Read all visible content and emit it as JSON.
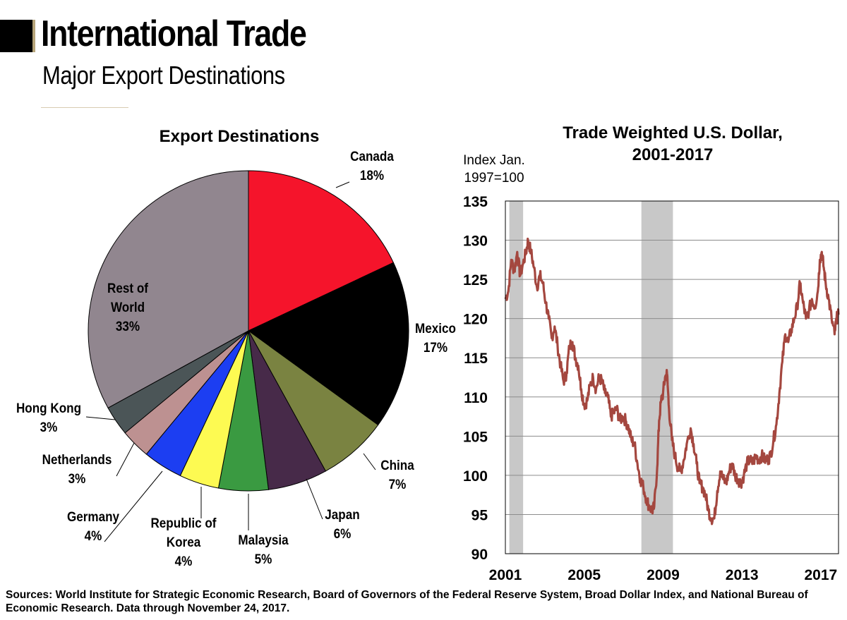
{
  "header": {
    "title": "International Trade",
    "subtitle": "Major Export Destinations"
  },
  "footer": {
    "sources": "Sources: World Institute for Strategic Economic Research, Board of Governors of the Federal Reserve System, Broad Dollar Index, and National Bureau of Economic Research. Data through November 24, 2017."
  },
  "colors": {
    "title_bar": "#000000",
    "accent": "#b7a57a",
    "line": "#a4473f",
    "recession": "#c8c8c8"
  },
  "chart_data": [
    {
      "type": "pie",
      "title": "Export Destinations",
      "start": "12 o'clock",
      "direction": "clockwise",
      "slices": [
        {
          "name": "Canada",
          "pct_label": "18%",
          "value": 18,
          "color": "#f5142b"
        },
        {
          "name": "Mexico",
          "pct_label": "17%",
          "value": 17,
          "color": "#000000"
        },
        {
          "name": "China",
          "pct_label": "7%",
          "value": 7,
          "color": "#7a8341"
        },
        {
          "name": "Japan",
          "pct_label": "6%",
          "value": 6,
          "color": "#472a49"
        },
        {
          "name": "Malaysia",
          "pct_label": "5%",
          "value": 5,
          "color": "#3a9a41"
        },
        {
          "name": "Republic of Korea",
          "pct_label": "4%",
          "value": 4,
          "color": "#fdfa52"
        },
        {
          "name": "Germany",
          "pct_label": "4%",
          "value": 4,
          "color": "#1c3ef2"
        },
        {
          "name": "Netherlands",
          "pct_label": "3%",
          "value": 3,
          "color": "#bd9191"
        },
        {
          "name": "Hong Kong",
          "pct_label": "3%",
          "value": 3,
          "color": "#4b5557"
        },
        {
          "name": "Rest of World",
          "pct_label": "33%",
          "value": 33,
          "color": "#91868f"
        }
      ]
    },
    {
      "type": "line",
      "title": "Trade Weighted U.S. Dollar, 2001-2017",
      "title_lines": [
        "Trade Weighted U.S. Dollar,",
        "2001-2017"
      ],
      "ylabel_lines": [
        "Index Jan.",
        "1997=100"
      ],
      "xlim": [
        2001.0,
        2017.9
      ],
      "ylim": [
        90,
        135
      ],
      "yticks": [
        90,
        95,
        100,
        105,
        110,
        115,
        120,
        125,
        130,
        135
      ],
      "xticks": [
        2001,
        2005,
        2009,
        2013,
        2017
      ],
      "grid": "horizontal",
      "recessions": [
        [
          2001.2,
          2001.9
        ],
        [
          2007.9,
          2009.5
        ]
      ],
      "series": [
        {
          "values": [
            [
              2001.0,
              122.5
            ],
            [
              2001.15,
              123.5
            ],
            [
              2001.3,
              127.5
            ],
            [
              2001.45,
              126.0
            ],
            [
              2001.6,
              128.5
            ],
            [
              2001.75,
              125.5
            ],
            [
              2001.9,
              127.0
            ],
            [
              2002.05,
              128.5
            ],
            [
              2002.15,
              130.0
            ],
            [
              2002.3,
              128.5
            ],
            [
              2002.45,
              126.5
            ],
            [
              2002.6,
              124.0
            ],
            [
              2002.75,
              125.5
            ],
            [
              2002.9,
              124.5
            ],
            [
              2003.05,
              122.0
            ],
            [
              2003.2,
              120.0
            ],
            [
              2003.35,
              117.5
            ],
            [
              2003.5,
              119.0
            ],
            [
              2003.65,
              116.5
            ],
            [
              2003.8,
              114.0
            ],
            [
              2003.95,
              112.0
            ],
            [
              2004.1,
              113.0
            ],
            [
              2004.25,
              116.5
            ],
            [
              2004.4,
              117.0
            ],
            [
              2004.55,
              115.0
            ],
            [
              2004.7,
              114.0
            ],
            [
              2004.85,
              111.0
            ],
            [
              2005.0,
              109.0
            ],
            [
              2005.15,
              109.5
            ],
            [
              2005.3,
              111.5
            ],
            [
              2005.45,
              112.5
            ],
            [
              2005.6,
              111.0
            ],
            [
              2005.75,
              112.5
            ],
            [
              2005.9,
              112.0
            ],
            [
              2006.05,
              110.5
            ],
            [
              2006.2,
              110.0
            ],
            [
              2006.35,
              107.5
            ],
            [
              2006.5,
              108.0
            ],
            [
              2006.65,
              108.5
            ],
            [
              2006.8,
              107.0
            ],
            [
              2006.95,
              107.5
            ],
            [
              2007.1,
              107.0
            ],
            [
              2007.25,
              106.0
            ],
            [
              2007.4,
              104.5
            ],
            [
              2007.55,
              104.0
            ],
            [
              2007.7,
              101.5
            ],
            [
              2007.85,
              99.5
            ],
            [
              2008.0,
              98.5
            ],
            [
              2008.15,
              97.0
            ],
            [
              2008.3,
              96.0
            ],
            [
              2008.45,
              95.5
            ],
            [
              2008.55,
              96.0
            ],
            [
              2008.7,
              101.0
            ],
            [
              2008.8,
              107.0
            ],
            [
              2008.9,
              109.5
            ],
            [
              2009.0,
              110.5
            ],
            [
              2009.1,
              112.5
            ],
            [
              2009.2,
              113.0
            ],
            [
              2009.3,
              108.5
            ],
            [
              2009.45,
              104.5
            ],
            [
              2009.6,
              102.5
            ],
            [
              2009.75,
              101.0
            ],
            [
              2009.9,
              100.5
            ],
            [
              2010.05,
              102.0
            ],
            [
              2010.2,
              104.0
            ],
            [
              2010.4,
              106.0
            ],
            [
              2010.55,
              104.0
            ],
            [
              2010.7,
              101.5
            ],
            [
              2010.85,
              99.0
            ],
            [
              2011.0,
              98.5
            ],
            [
              2011.15,
              97.5
            ],
            [
              2011.3,
              95.5
            ],
            [
              2011.45,
              94.5
            ],
            [
              2011.6,
              94.5
            ],
            [
              2011.75,
              98.0
            ],
            [
              2011.9,
              100.5
            ],
            [
              2012.05,
              99.5
            ],
            [
              2012.2,
              99.0
            ],
            [
              2012.35,
              100.5
            ],
            [
              2012.5,
              101.5
            ],
            [
              2012.65,
              100.0
            ],
            [
              2012.8,
              99.5
            ],
            [
              2012.95,
              99.0
            ],
            [
              2013.1,
              100.0
            ],
            [
              2013.25,
              101.5
            ],
            [
              2013.4,
              102.0
            ],
            [
              2013.55,
              101.5
            ],
            [
              2013.7,
              102.5
            ],
            [
              2013.85,
              102.0
            ],
            [
              2014.0,
              102.5
            ],
            [
              2014.15,
              102.0
            ],
            [
              2014.3,
              102.0
            ],
            [
              2014.45,
              102.5
            ],
            [
              2014.6,
              104.5
            ],
            [
              2014.75,
              106.5
            ],
            [
              2014.9,
              110.5
            ],
            [
              2015.05,
              114.5
            ],
            [
              2015.2,
              118.0
            ],
            [
              2015.35,
              117.0
            ],
            [
              2015.5,
              118.5
            ],
            [
              2015.65,
              120.0
            ],
            [
              2015.8,
              121.5
            ],
            [
              2015.95,
              124.5
            ],
            [
              2016.1,
              122.0
            ],
            [
              2016.25,
              120.0
            ],
            [
              2016.4,
              121.0
            ],
            [
              2016.55,
              122.5
            ],
            [
              2016.7,
              121.5
            ],
            [
              2016.85,
              123.5
            ],
            [
              2016.95,
              127.5
            ],
            [
              2017.05,
              128.5
            ],
            [
              2017.15,
              126.5
            ],
            [
              2017.25,
              124.5
            ],
            [
              2017.4,
              122.5
            ],
            [
              2017.55,
              120.0
            ],
            [
              2017.7,
              118.0
            ],
            [
              2017.8,
              120.0
            ],
            [
              2017.9,
              120.5
            ]
          ]
        }
      ]
    }
  ]
}
